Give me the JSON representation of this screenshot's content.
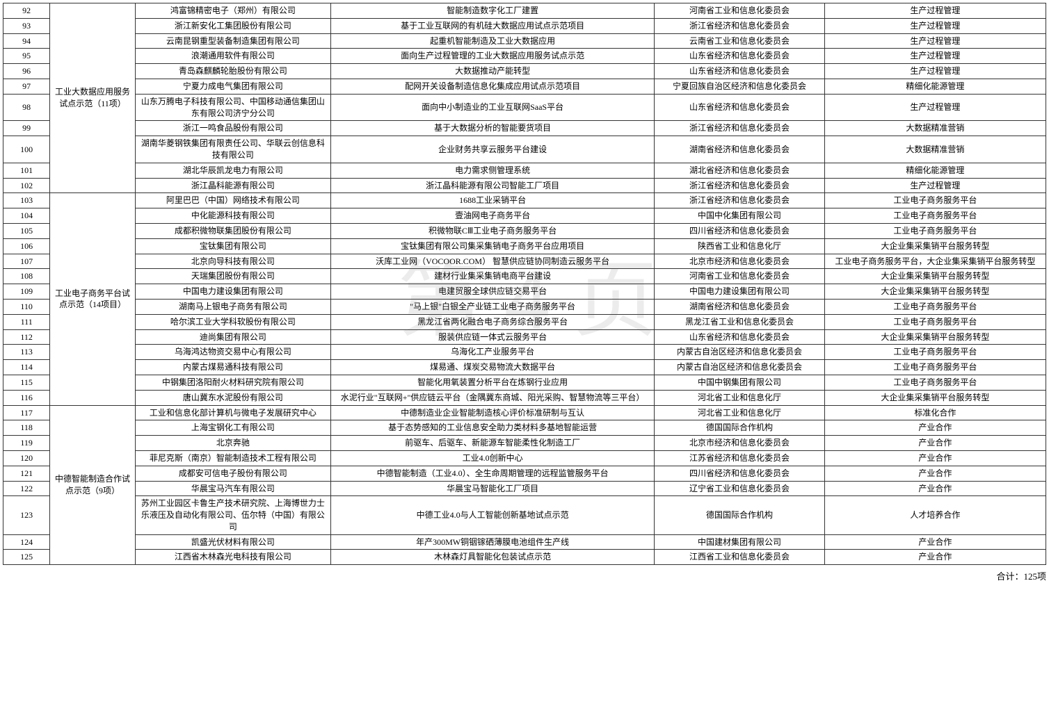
{
  "watermark": "第 4 页",
  "footer": "合计：125项",
  "groups": [
    {
      "category": "工业大数据应用服务试点示范（11项）",
      "rows": [
        {
          "idx": "92",
          "company": "鸿富锦精密电子（郑州）有限公司",
          "project": "智能制造数字化工厂建置",
          "agency": "河南省工业和信息化委员会",
          "type": "生产过程管理"
        },
        {
          "idx": "93",
          "company": "浙江新安化工集团股份有限公司",
          "project": "基于工业互联网的有机硅大数据应用试点示范项目",
          "agency": "浙江省经济和信息化委员会",
          "type": "生产过程管理"
        },
        {
          "idx": "94",
          "company": "云南昆钢重型装备制造集团有限公司",
          "project": "起重机智能制造及工业大数据应用",
          "agency": "云南省工业和信息化委员会",
          "type": "生产过程管理"
        },
        {
          "idx": "95",
          "company": "浪潮通用软件有限公司",
          "project": "面向生产过程管理的工业大数据应用服务试点示范",
          "agency": "山东省经济和信息化委员会",
          "type": "生产过程管理"
        },
        {
          "idx": "96",
          "company": "青岛森麒麟轮胎股份有限公司",
          "project": "大数据推动产能转型",
          "agency": "山东省经济和信息化委员会",
          "type": "生产过程管理"
        },
        {
          "idx": "97",
          "company": "宁夏力成电气集团有限公司",
          "project": "配网开关设备制造信息化集成应用试点示范项目",
          "agency": "宁夏回族自治区经济和信息化委员会",
          "type": "精细化能源管理"
        },
        {
          "idx": "98",
          "company": "山东万腾电子科技有限公司、中国移动通信集团山东有限公司济宁分公司",
          "project": "面向中小制造业的工业互联网SaaS平台",
          "agency": "山东省经济和信息化委员会",
          "type": "生产过程管理",
          "dashed": true
        },
        {
          "idx": "99",
          "company": "浙江一鸣食品股份有限公司",
          "project": "基于大数据分析的智能要货项目",
          "agency": "浙江省经济和信息化委员会",
          "type": "大数据精准营销"
        },
        {
          "idx": "100",
          "company": "湖南华菱钢铁集团有限责任公司、华联云创信息科技有限公司",
          "project": "企业财务共享云服务平台建设",
          "agency": "湖南省经济和信息化委员会",
          "type": "大数据精准营销"
        },
        {
          "idx": "101",
          "company": "湖北华辰凯龙电力有限公司",
          "project": "电力需求侧管理系统",
          "agency": "湖北省经济和信息化委员会",
          "type": "精细化能源管理"
        },
        {
          "idx": "102",
          "company": "浙江晶科能源有限公司",
          "project": "浙江晶科能源有限公司智能工厂项目",
          "agency": "浙江省经济和信息化委员会",
          "type": "生产过程管理"
        }
      ]
    },
    {
      "category": "工业电子商务平台试点示范（14项目）",
      "rows": [
        {
          "idx": "103",
          "company": "阿里巴巴（中国）网络技术有限公司",
          "project": "1688工业采销平台",
          "agency": "浙江省经济和信息化委员会",
          "type": "工业电子商务服务平台"
        },
        {
          "idx": "104",
          "company": "中化能源科技有限公司",
          "project": "壹油网电子商务平台",
          "agency": "中国中化集团有限公司",
          "type": "工业电子商务服务平台"
        },
        {
          "idx": "105",
          "company": "成都积微物联集团股份有限公司",
          "project": "积微物联CⅢ工业电子商务服务平台",
          "agency": "四川省经济和信息化委员会",
          "type": "工业电子商务服务平台"
        },
        {
          "idx": "106",
          "company": "宝钛集团有限公司",
          "project": "宝钛集团有限公司集采集销电子商务平台应用项目",
          "agency": "陕西省工业和信息化厅",
          "type": "大企业集采集销平台服务转型"
        },
        {
          "idx": "107",
          "company": "北京向导科技有限公司",
          "project": "沃库工业网（VOCOOR.COM） 智慧供应链协同制造云服务平台",
          "agency": "北京市经济和信息化委员会",
          "type": "工业电子商务服务平台，大企业集采集销平台服务转型"
        },
        {
          "idx": "108",
          "company": "天瑞集团股份有限公司",
          "project": "建材行业集采集销电商平台建设",
          "agency": "河南省工业和信息化委员会",
          "type": "大企业集采集销平台服务转型"
        },
        {
          "idx": "109",
          "company": "中国电力建设集团有限公司",
          "project": "电建贸服全球供应链交易平台",
          "agency": "中国电力建设集团有限公司",
          "type": "大企业集采集销平台服务转型"
        },
        {
          "idx": "110",
          "company": "湖南马上银电子商务有限公司",
          "project": "\"马上银\"白银全产业链工业电子商务服务平台",
          "agency": "湖南省经济和信息化委员会",
          "type": "工业电子商务服务平台"
        },
        {
          "idx": "111",
          "company": "哈尔滨工业大学科软股份有限公司",
          "project": "黑龙江省两化融合电子商务综合服务平台",
          "agency": "黑龙江省工业和信息化委员会",
          "type": "工业电子商务服务平台"
        },
        {
          "idx": "112",
          "company": "迪尚集团有限公司",
          "project": "服装供应链一体式云服务平台",
          "agency": "山东省经济和信息化委员会",
          "type": "大企业集采集销平台服务转型"
        },
        {
          "idx": "113",
          "company": "乌海鸿达物资交易中心有限公司",
          "project": "乌海化工产业服务平台",
          "agency": "内蒙古自治区经济和信息化委员会",
          "type": "工业电子商务服务平台"
        },
        {
          "idx": "114",
          "company": "内蒙古煤易通科技有限公司",
          "project": "煤易通、煤炭交易物流大数据平台",
          "agency": "内蒙古自治区经济和信息化委员会",
          "type": "工业电子商务服务平台"
        },
        {
          "idx": "115",
          "company": "中钢集团洛阳耐火材料研究院有限公司",
          "project": "智能化用氧装置分析平台在炼钢行业应用",
          "agency": "中国中钢集团有限公司",
          "type": "工业电子商务服务平台"
        },
        {
          "idx": "116",
          "company": "唐山冀东水泥股份有限公司",
          "project": "水泥行业\"互联网+\"供应链云平台（金隅冀东商城、阳光采购、智慧物流等三平台）",
          "agency": "河北省工业和信息化厅",
          "type": "大企业集采集销平台服务转型"
        }
      ]
    },
    {
      "category": "中德智能制造合作试点示范（9项）",
      "rows": [
        {
          "idx": "117",
          "company": "工业和信息化部计算机与微电子发展研究中心",
          "project": "中德制造业企业智能制造核心评价标准研制与互认",
          "agency": "河北省工业和信息化厅",
          "type": "标准化合作"
        },
        {
          "idx": "118",
          "company": "上海宝钢化工有限公司",
          "project": "基于态势感知的工业信息安全助力类材料多基地智能运营",
          "agency": "德国国际合作机构",
          "type": "产业合作"
        },
        {
          "idx": "119",
          "company": "北京奔驰",
          "project": "前驱车、后驱车、新能源车智能柔性化制造工厂",
          "agency": "北京市经济和信息化委员会",
          "type": "产业合作"
        },
        {
          "idx": "120",
          "company": "菲尼克斯（南京）智能制造技术工程有限公司",
          "project": "工业4.0创新中心",
          "agency": "江苏省经济和信息化委员会",
          "type": "产业合作"
        },
        {
          "idx": "121",
          "company": "成都安可信电子股份有限公司",
          "project": "中德智能制造（工业4.0）、全生命周期管理的远程监管服务平台",
          "agency": "四川省经济和信息化委员会",
          "type": "产业合作"
        },
        {
          "idx": "122",
          "company": "华晨宝马汽车有限公司",
          "project": "华晨宝马智能化工厂项目",
          "agency": "辽宁省工业和信息化委员会",
          "type": "产业合作"
        },
        {
          "idx": "123",
          "company": "苏州工业园区卡鲁生产技术研究院、上海博世力士乐液压及自动化有限公司、伍尔特（中国）有限公司",
          "project": "中德工业4.0与人工智能创新基地试点示范",
          "agency": "德国国际合作机构",
          "type": "人才培养合作"
        },
        {
          "idx": "124",
          "company": "凯盛光伏材料有限公司",
          "project": "年产300MW铜铟镓硒薄膜电池组件生产线",
          "agency": "中国建材集团有限公司",
          "type": "产业合作"
        },
        {
          "idx": "125",
          "company": "江西省木林森光电科技有限公司",
          "project": "木林森灯具智能化包装试点示范",
          "agency": "江西省工业和信息化委员会",
          "type": "产业合作"
        }
      ]
    }
  ]
}
